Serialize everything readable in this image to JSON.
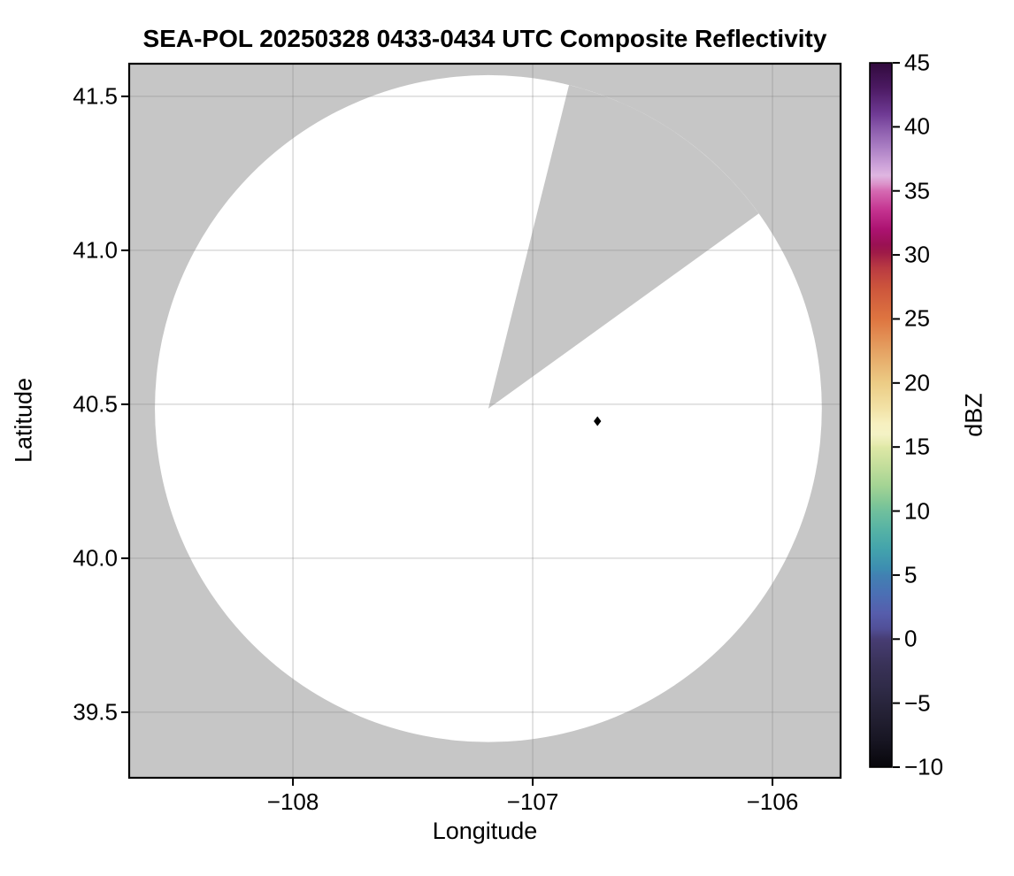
{
  "chart_data": {
    "type": "heatmap",
    "title": "SEA-POL 20250328 0433-0434 UTC Composite Reflectivity",
    "xlabel": "Longitude",
    "ylabel": "Latitude",
    "xlim": [
      -108.683,
      -105.716
    ],
    "ylim": [
      39.287,
      41.606
    ],
    "x_ticks": [
      -108,
      -107,
      -106
    ],
    "x_tick_labels": [
      "−108",
      "−107",
      "−106"
    ],
    "y_ticks": [
      41.5,
      41.0,
      40.5,
      40.0,
      39.5
    ],
    "y_tick_labels": [
      "41.5",
      "41.0",
      "40.5",
      "40.0",
      "39.5"
    ],
    "grid": true,
    "grid_color": "rgba(128,128,128,0.35)",
    "no_data_color": "#c6c6c6",
    "coverage_circle": {
      "center_lon": -107.185,
      "center_lat": 40.486,
      "radius_deg_lat": 1.083,
      "fill": "#ffffff",
      "blocked_sector_azimuth_deg": [
        14,
        54.2
      ]
    },
    "echo_points": [
      {
        "lon": -106.73,
        "lat": 40.445,
        "color": "#000000"
      }
    ],
    "colorbar": {
      "label": "dBZ",
      "min": -10,
      "max": 45,
      "tick_values": [
        45,
        40,
        35,
        30,
        25,
        20,
        15,
        10,
        5,
        0,
        -5,
        -10
      ],
      "tick_labels": [
        "45",
        "40",
        "35",
        "30",
        "25",
        "20",
        "15",
        "10",
        "5",
        "0",
        "−5",
        "−10"
      ],
      "colormap_stops": [
        [
          45,
          "#310a3d"
        ],
        [
          43,
          "#4c1a63"
        ],
        [
          41,
          "#6f3a94"
        ],
        [
          40,
          "#8757a9"
        ],
        [
          38.5,
          "#a87cc2"
        ],
        [
          37,
          "#cda2d9"
        ],
        [
          36.2,
          "#dfb6e1"
        ],
        [
          35.5,
          "#db90c8"
        ],
        [
          35,
          "#d56ab2"
        ],
        [
          33.5,
          "#c43390"
        ],
        [
          32,
          "#ac1271"
        ],
        [
          30.8,
          "#9a1153"
        ],
        [
          30.2,
          "#9e1a48"
        ],
        [
          29,
          "#b93a42"
        ],
        [
          27.5,
          "#cc543c"
        ],
        [
          25,
          "#de7540"
        ],
        [
          22.5,
          "#e5a263"
        ],
        [
          20,
          "#eccc85"
        ],
        [
          18,
          "#f2e2a6"
        ],
        [
          16.8,
          "#f7f0c0"
        ],
        [
          16,
          "#f4f2c5"
        ],
        [
          15.2,
          "#e6ebaf"
        ],
        [
          15,
          "#dee8a6"
        ],
        [
          13.5,
          "#c3de9b"
        ],
        [
          12,
          "#a4d494"
        ],
        [
          10.5,
          "#7dc597"
        ],
        [
          10,
          "#70c09d"
        ],
        [
          8.5,
          "#55b2a5"
        ],
        [
          7,
          "#43a3ac"
        ],
        [
          5.5,
          "#3d8db1"
        ],
        [
          5,
          "#4181b2"
        ],
        [
          3.5,
          "#4b6fb4"
        ],
        [
          2,
          "#565dac"
        ],
        [
          0.8,
          "#514f97"
        ],
        [
          0,
          "#473d73"
        ],
        [
          -2,
          "#393258"
        ],
        [
          -4,
          "#2e2a46"
        ],
        [
          -6,
          "#232033"
        ],
        [
          -8,
          "#171522"
        ],
        [
          -10,
          "#07060a"
        ]
      ]
    }
  }
}
